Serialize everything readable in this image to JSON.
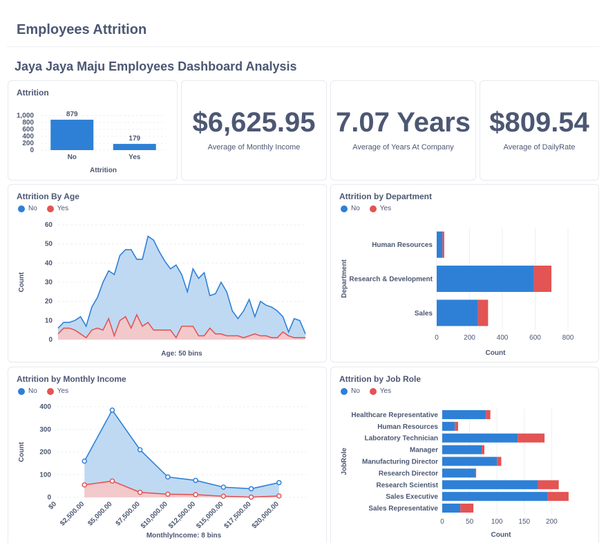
{
  "page": {
    "title": "Employees Attrition",
    "dashboard_title": "Jaya Jaya Maju Employees Dashboard Analysis"
  },
  "colors": {
    "no": "#2e80d6",
    "yes": "#e35454",
    "no_fill": "#bcd7f2",
    "yes_fill": "#f7c7c7",
    "grid": "#eceff3",
    "text": "#4c5773"
  },
  "legend": {
    "no": "No",
    "yes": "Yes"
  },
  "scalars": [
    {
      "value": "$6,625.95",
      "label": "Average of Monthly Income"
    },
    {
      "value": "7.07 Years",
      "label": "Average of Years At Company"
    },
    {
      "value": "$809.54",
      "label": "Average of DailyRate"
    }
  ],
  "chart_data": [
    {
      "id": "attrition",
      "type": "bar",
      "title": "Attrition",
      "categories": [
        "No",
        "Yes"
      ],
      "values": [
        879,
        179
      ],
      "value_labels": [
        "879",
        "179"
      ],
      "xlabel": "Attrition",
      "ylabel": "",
      "ylim": [
        0,
        1000
      ],
      "yticks": [
        "0",
        "200",
        "400",
        "600",
        "800",
        "1,000"
      ],
      "grid": true
    },
    {
      "id": "by_age",
      "type": "area",
      "title": "Attrition By Age",
      "xlabel": "Age: 50 bins",
      "ylabel": "Count",
      "ylim": [
        0,
        60
      ],
      "yticks": [
        "0",
        "10",
        "20",
        "30",
        "40",
        "50",
        "60"
      ],
      "legend": "top-left",
      "series": [
        {
          "name": "No",
          "values": [
            6,
            9,
            9,
            10,
            12,
            7,
            17,
            22,
            30,
            36,
            34,
            44,
            47,
            47,
            42,
            42,
            54,
            52,
            46,
            41,
            37,
            39,
            34,
            25,
            37,
            32,
            35,
            23,
            24,
            30,
            25,
            15,
            11,
            15,
            21,
            12,
            20,
            18,
            17,
            15,
            12,
            4,
            11,
            10,
            3
          ]
        },
        {
          "name": "Yes",
          "values": [
            3,
            6,
            6,
            5,
            3,
            1,
            5,
            6,
            5,
            11,
            2,
            10,
            12,
            6,
            13,
            7,
            9,
            5,
            5,
            5,
            5,
            1,
            7,
            7,
            7,
            2,
            2,
            6,
            3,
            3,
            2,
            2,
            2,
            1,
            2,
            3,
            2,
            2,
            1,
            1,
            4,
            2,
            1,
            1,
            1
          ]
        }
      ]
    },
    {
      "id": "by_department",
      "type": "bar",
      "orientation": "horizontal",
      "stacked": true,
      "title": "Attrition by Department",
      "categories": [
        "Human Resources",
        "Research & Development",
        "Sales"
      ],
      "series": [
        {
          "name": "No",
          "values": [
            35,
            592,
            252
          ]
        },
        {
          "name": "Yes",
          "values": [
            11,
            107,
            61
          ]
        }
      ],
      "xlabel": "Count",
      "ylabel": "Department",
      "xlim": [
        0,
        800
      ],
      "xticks": [
        "0",
        "200",
        "400",
        "600",
        "800"
      ],
      "legend": "top-left"
    },
    {
      "id": "by_income",
      "type": "area",
      "title": "Attrition by Monthly Income",
      "xlabel": "MonthlyIncome: 8 bins",
      "ylabel": "Count",
      "ylim": [
        0,
        400
      ],
      "yticks": [
        "0",
        "100",
        "200",
        "300",
        "400"
      ],
      "xticks": [
        "$0",
        "$2,500.00",
        "$5,000.00",
        "$7,500.00",
        "$10,000.00",
        "$12,500.00",
        "$15,000.00",
        "$17,500.00",
        "$20,000.00"
      ],
      "x": [
        2500,
        5000,
        7500,
        10000,
        12500,
        15000,
        17500,
        20000
      ],
      "legend": "top-left",
      "series": [
        {
          "name": "No",
          "values": [
            160,
            385,
            210,
            90,
            75,
            45,
            38,
            65
          ]
        },
        {
          "name": "Yes",
          "values": [
            55,
            72,
            22,
            14,
            12,
            5,
            1,
            6
          ]
        }
      ]
    },
    {
      "id": "by_jobrole",
      "type": "bar",
      "orientation": "horizontal",
      "stacked": true,
      "title": "Attrition by Job Role",
      "categories": [
        "Healthcare Representative",
        "Human Resources",
        "Laboratory Technician",
        "Manager",
        "Manufacturing Director",
        "Research Director",
        "Research Scientist",
        "Sales Executive",
        "Sales Representative"
      ],
      "series": [
        {
          "name": "No",
          "values": [
            80,
            23,
            138,
            72,
            100,
            60,
            175,
            193,
            33
          ]
        },
        {
          "name": "Yes",
          "values": [
            8,
            6,
            49,
            5,
            8,
            2,
            38,
            38,
            24
          ]
        }
      ],
      "xlabel": "Count",
      "ylabel": "JobRole",
      "xlim": [
        0,
        240
      ],
      "xticks": [
        "0",
        "50",
        "100",
        "150",
        "200"
      ],
      "legend": "top-left"
    }
  ]
}
